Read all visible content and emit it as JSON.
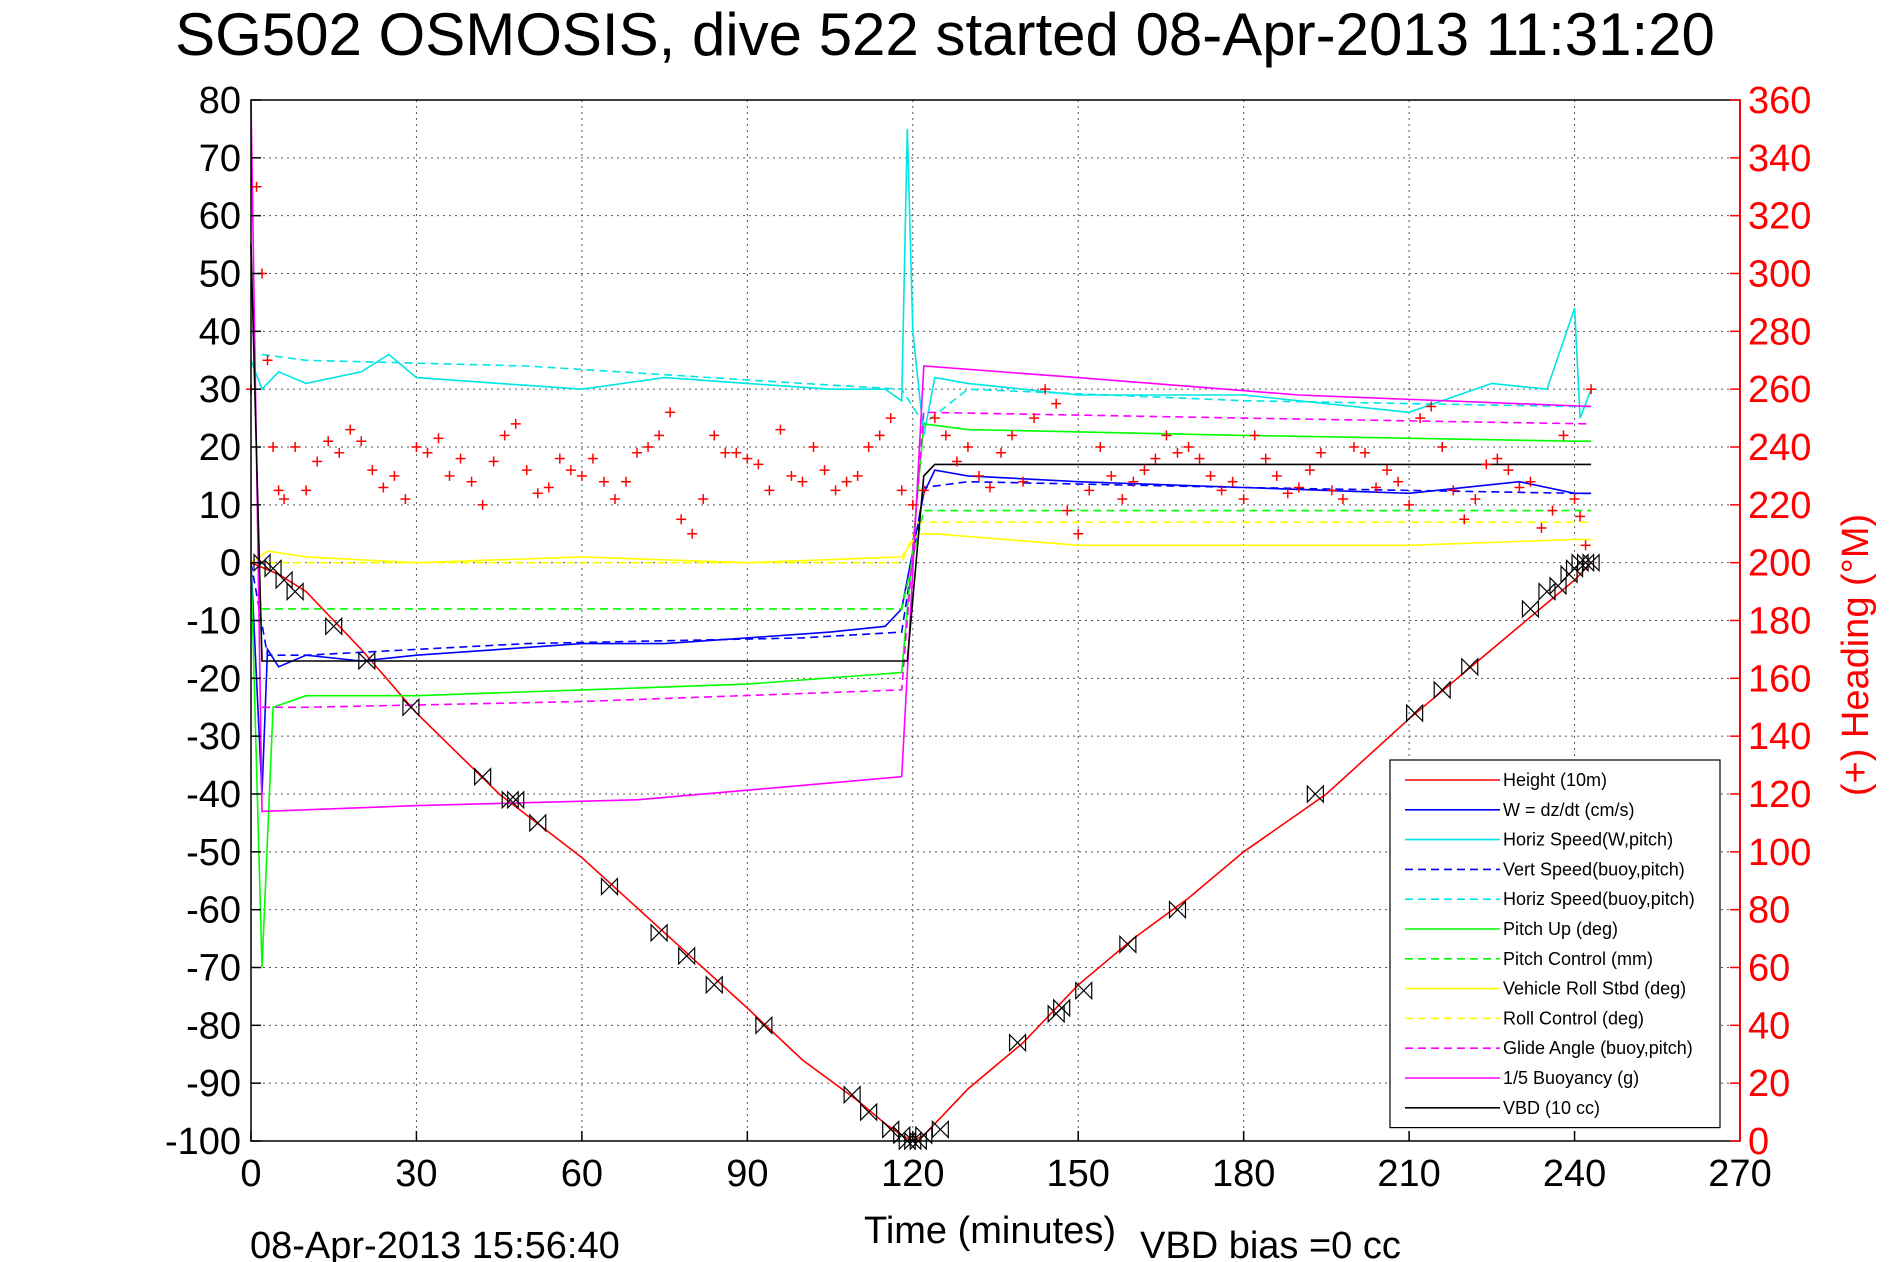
{
  "chart_data": {
    "type": "line",
    "title": "SG502 OSMOSIS, dive 522 started 08-Apr-2013 11:31:20",
    "xlabel": "Time (minutes)",
    "ylabel": "",
    "y2label": "(+) Heading (°M)",
    "xlim": [
      0,
      270
    ],
    "ylim": [
      -100,
      80
    ],
    "y2lim": [
      0,
      360
    ],
    "xticks": [
      "0",
      "30",
      "60",
      "90",
      "120",
      "150",
      "180",
      "210",
      "240",
      "270"
    ],
    "yticks": [
      "80",
      "70",
      "60",
      "50",
      "40",
      "30",
      "20",
      "10",
      "0",
      "-10",
      "-20",
      "-30",
      "-40",
      "-50",
      "-60",
      "-70",
      "-80",
      "-90",
      "-100"
    ],
    "y2ticks": [
      "360",
      "340",
      "320",
      "300",
      "280",
      "260",
      "240",
      "220",
      "200",
      "180",
      "160",
      "140",
      "120",
      "100",
      "80",
      "60",
      "40",
      "20",
      "0"
    ],
    "grid": true,
    "legend_position": "bottom-right",
    "footer_left": "08-Apr-2013 15:56:40",
    "footer_right": "VBD bias =0 cc",
    "series": [
      {
        "name": "Height (10m)",
        "color": "#ff0000",
        "style": "solid",
        "x": [
          0,
          5,
          10,
          20,
          30,
          45,
          60,
          75,
          90,
          100,
          110,
          115,
          118,
          120,
          122,
          125,
          130,
          140,
          150,
          160,
          170,
          180,
          195,
          210,
          225,
          235,
          240,
          243
        ],
        "y": [
          0,
          -2,
          -5,
          -15,
          -26,
          -40,
          -51,
          -64,
          -77,
          -86,
          -93,
          -97,
          -99,
          -100,
          -99,
          -96,
          -91,
          -83,
          -73,
          -65,
          -58,
          -50,
          -40,
          -27,
          -15,
          -7,
          -3,
          0
        ]
      },
      {
        "name": "W = dz/dt (cm/s)",
        "color": "#0000ff",
        "style": "solid",
        "x": [
          0,
          2,
          3,
          5,
          10,
          20,
          30,
          45,
          60,
          75,
          90,
          105,
          115,
          118,
          122,
          124,
          130,
          150,
          180,
          210,
          230,
          240,
          243
        ],
        "y": [
          0,
          -40,
          -15,
          -18,
          -16,
          -17,
          -16,
          -15,
          -14,
          -14,
          -13,
          -12,
          -11,
          -8,
          12,
          16,
          15,
          14,
          13,
          12,
          14,
          12,
          12
        ]
      },
      {
        "name": "Horiz Speed(W,pitch)",
        "color": "#00e5e5",
        "style": "solid",
        "x": [
          0,
          2,
          5,
          10,
          20,
          25,
          30,
          45,
          60,
          75,
          90,
          105,
          115,
          118,
          119,
          120,
          122,
          124,
          130,
          150,
          180,
          210,
          225,
          235,
          240,
          241,
          243
        ],
        "y": [
          35,
          30,
          33,
          31,
          33,
          36,
          32,
          31,
          30,
          32,
          31,
          30,
          30,
          28,
          75,
          40,
          22,
          32,
          31,
          29,
          29,
          26,
          31,
          30,
          44,
          25,
          30
        ]
      },
      {
        "name": "Vert Speed(buoy,pitch)",
        "color": "#0000ff",
        "style": "dashed",
        "x": [
          0,
          3,
          10,
          50,
          100,
          118,
          122,
          130,
          180,
          240,
          243
        ],
        "y": [
          0,
          -16,
          -16,
          -14,
          -13,
          -12,
          13,
          14,
          13,
          12,
          12
        ]
      },
      {
        "name": "Horiz Speed(buoy,pitch)",
        "color": "#00e5e5",
        "style": "dashed",
        "x": [
          2,
          10,
          50,
          100,
          118,
          122,
          130,
          180,
          240,
          243
        ],
        "y": [
          36,
          35,
          34,
          31,
          30,
          24,
          30,
          28,
          27,
          27
        ]
      },
      {
        "name": "Pitch Up (deg)",
        "color": "#00ff00",
        "style": "solid",
        "x": [
          0,
          2,
          4,
          10,
          30,
          60,
          90,
          118,
          122,
          130,
          180,
          240,
          243
        ],
        "y": [
          0,
          -70,
          -25,
          -23,
          -23,
          -22,
          -21,
          -19,
          24,
          23,
          22,
          21,
          21
        ]
      },
      {
        "name": "Pitch Control (mm)",
        "color": "#00ff00",
        "style": "dashed",
        "x": [
          2,
          30,
          118,
          122,
          243
        ],
        "y": [
          -8,
          -8,
          -8,
          9,
          9
        ]
      },
      {
        "name": "Vehicle Roll Stbd (deg)",
        "color": "#ffff00",
        "style": "solid",
        "x": [
          0,
          3,
          10,
          30,
          60,
          90,
          118,
          121,
          124,
          150,
          180,
          210,
          240,
          243
        ],
        "y": [
          0,
          2,
          1,
          0,
          1,
          0,
          1,
          5,
          5,
          3,
          3,
          3,
          4,
          4
        ]
      },
      {
        "name": "Roll Control (deg)",
        "color": "#ffff00",
        "style": "dashed",
        "x": [
          3,
          118,
          121,
          243
        ],
        "y": [
          0,
          0,
          7,
          7
        ]
      },
      {
        "name": "Glide Angle (buoy,pitch)",
        "color": "#ff00ff",
        "style": "dashed",
        "x": [
          2,
          10,
          60,
          118,
          122,
          180,
          243
        ],
        "y": [
          -25,
          -25,
          -24,
          -22,
          26,
          25,
          24
        ]
      },
      {
        "name": "1/5 Buoyancy (g)",
        "color": "#ff00ff",
        "style": "solid",
        "x": [
          0,
          2,
          30,
          70,
          118,
          122,
          150,
          190,
          243
        ],
        "y": [
          80,
          -43,
          -42,
          -41,
          -37,
          34,
          32,
          29,
          27
        ]
      },
      {
        "name": "VBD (10 cc)",
        "color": "#000000",
        "style": "solid",
        "x": [
          0,
          2,
          10,
          118,
          119,
          122,
          124,
          243
        ],
        "y": [
          55,
          -17,
          -17,
          -17,
          -17,
          15,
          17,
          17
        ]
      }
    ],
    "heading_series": {
      "name": "Heading",
      "color": "#ff0000",
      "marker": "+",
      "axis": "right",
      "x": [
        0,
        1,
        2,
        3,
        4,
        5,
        6,
        8,
        10,
        12,
        14,
        16,
        18,
        20,
        22,
        24,
        26,
        28,
        30,
        32,
        34,
        36,
        38,
        40,
        42,
        44,
        46,
        48,
        50,
        52,
        54,
        56,
        58,
        60,
        62,
        64,
        66,
        68,
        70,
        72,
        74,
        76,
        78,
        80,
        82,
        84,
        86,
        88,
        90,
        92,
        94,
        96,
        98,
        100,
        102,
        104,
        106,
        108,
        110,
        112,
        114,
        116,
        118,
        120,
        122,
        124,
        126,
        128,
        130,
        132,
        134,
        136,
        138,
        140,
        142,
        144,
        146,
        148,
        150,
        152,
        154,
        156,
        158,
        160,
        162,
        164,
        166,
        168,
        170,
        172,
        174,
        176,
        178,
        180,
        182,
        184,
        186,
        188,
        190,
        192,
        194,
        196,
        198,
        200,
        202,
        204,
        206,
        208,
        210,
        212,
        214,
        216,
        218,
        220,
        222,
        224,
        226,
        228,
        230,
        232,
        234,
        236,
        238,
        240,
        241,
        242,
        243
      ],
      "y": [
        260,
        330,
        300,
        270,
        240,
        225,
        222,
        240,
        225,
        235,
        242,
        238,
        246,
        242,
        232,
        226,
        230,
        222,
        240,
        238,
        243,
        230,
        236,
        228,
        220,
        235,
        244,
        248,
        232,
        224,
        226,
        236,
        232,
        230,
        236,
        228,
        222,
        228,
        238,
        240,
        244,
        252,
        215,
        210,
        222,
        244,
        238,
        238,
        236,
        234,
        225,
        246,
        230,
        228,
        240,
        232,
        225,
        228,
        230,
        240,
        244,
        250,
        225,
        220,
        225,
        250,
        244,
        235,
        240,
        230,
        226,
        238,
        244,
        228,
        250,
        260,
        255,
        218,
        210,
        225,
        240,
        230,
        222,
        228,
        232,
        236,
        244,
        238,
        240,
        236,
        230,
        225,
        228,
        222,
        244,
        236,
        230,
        224,
        226,
        232,
        238,
        225,
        222,
        240,
        238,
        226,
        232,
        228,
        220,
        250,
        254,
        240,
        225,
        215,
        222,
        234,
        236,
        232,
        226,
        228,
        212,
        218,
        244,
        222,
        216,
        206,
        260
      ]
    },
    "vbd_markers": {
      "color": "#000000",
      "marker": "bowtie",
      "x": [
        2,
        4,
        6,
        8,
        15,
        21,
        29,
        42,
        47,
        48,
        52,
        65,
        74,
        79,
        84,
        93,
        109,
        112,
        116,
        118,
        119,
        120,
        121,
        122,
        125,
        139,
        146,
        147,
        151,
        159,
        168,
        193,
        211,
        216,
        221,
        232,
        235,
        237,
        239,
        240,
        241,
        242,
        243
      ],
      "y": [
        0,
        -1,
        -3,
        -5,
        -11,
        -17,
        -25,
        -37,
        -41,
        -41,
        -45,
        -56,
        -64,
        -68,
        -73,
        -80,
        -92,
        -95,
        -98,
        -99,
        -100,
        -100,
        -100,
        -99,
        -98,
        -83,
        -78,
        -77,
        -74,
        -66,
        -60,
        -40,
        -26,
        -22,
        -18,
        -8,
        -5,
        -4,
        -2,
        -1,
        0,
        0,
        0
      ]
    }
  }
}
